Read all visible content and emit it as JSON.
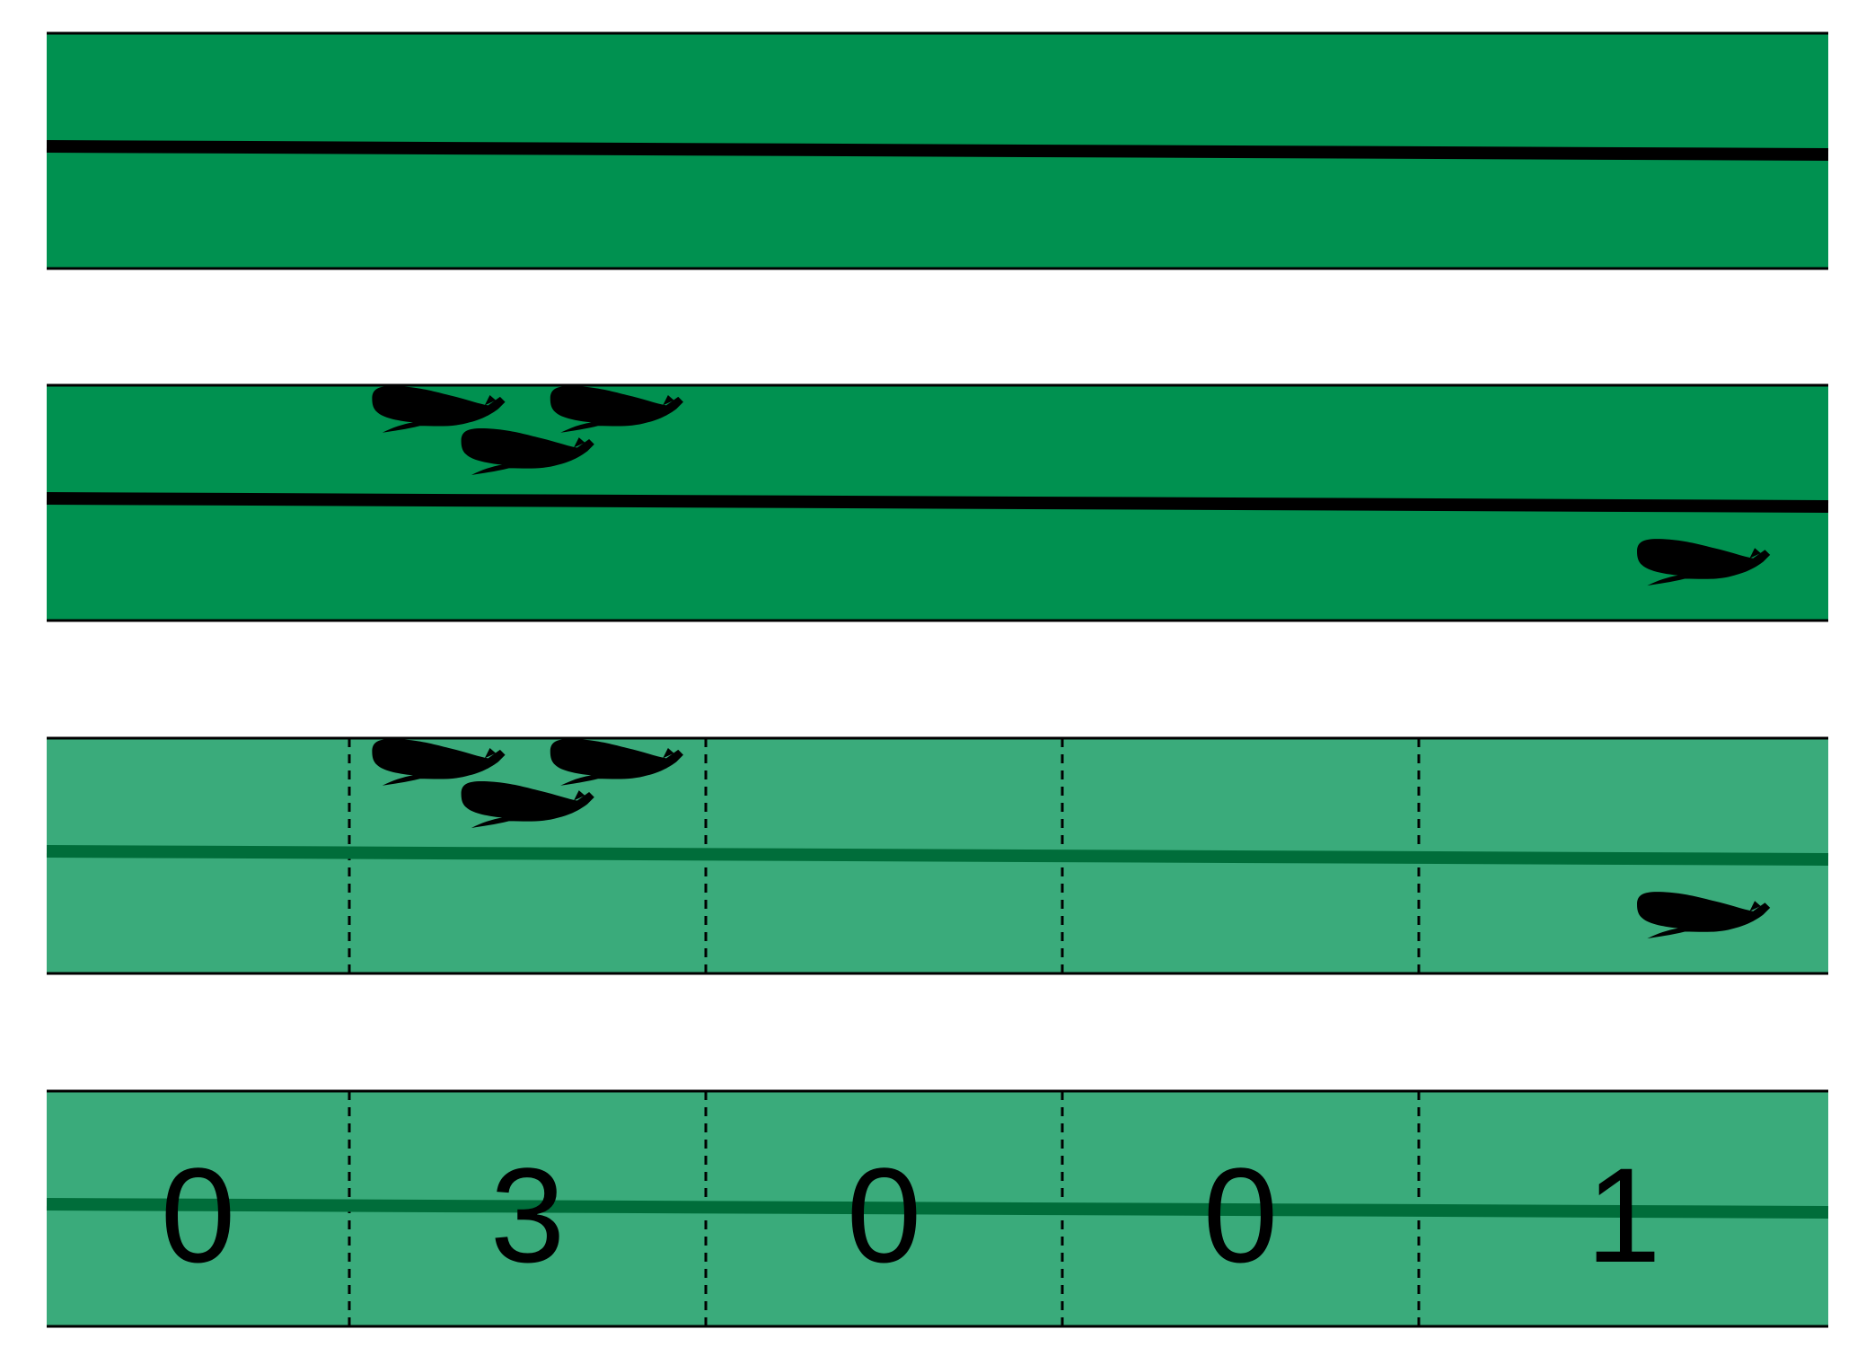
{
  "colors": {
    "band_dark": "#009150",
    "band_light": "#3aab7b",
    "transect_line_dark": "#000000",
    "transect_line_light": "#006d3a",
    "whale": "#000000",
    "segment_divider": "#000000"
  },
  "icons": {
    "whale": "sperm-whale-icon"
  },
  "panels": [
    {
      "name": "transect-panel",
      "style": "dark",
      "whales": [],
      "segmented": false,
      "show_counts": false
    },
    {
      "name": "whale-sightings-panel",
      "style": "dark",
      "whales": [
        [
          0.22,
          0.1
        ],
        [
          0.32,
          0.1
        ],
        [
          0.27,
          0.28
        ],
        [
          0.93,
          0.75
        ]
      ],
      "segmented": false,
      "show_counts": false
    },
    {
      "name": "segmented-transect-panel",
      "style": "light",
      "whales": [
        [
          0.22,
          0.1
        ],
        [
          0.32,
          0.1
        ],
        [
          0.27,
          0.28
        ],
        [
          0.93,
          0.75
        ]
      ],
      "segmented": true,
      "show_counts": false
    },
    {
      "name": "segment-counts-panel",
      "style": "light",
      "whales": [],
      "segmented": true,
      "show_counts": true
    }
  ],
  "segments": {
    "count": 5,
    "counts": [
      "0",
      "3",
      "0",
      "0",
      "1"
    ]
  }
}
